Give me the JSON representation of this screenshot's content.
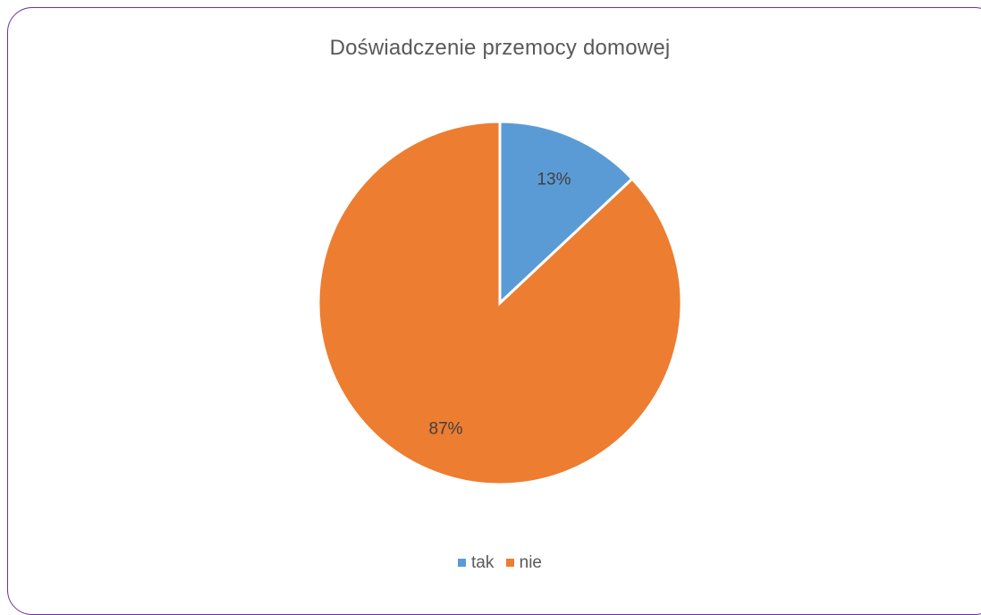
{
  "chart_data": {
    "type": "pie",
    "title": "Doświadczenie przemocy domowej",
    "categories": [
      "tak",
      "nie"
    ],
    "values": [
      13,
      87
    ],
    "data_labels": [
      "13%",
      "87%"
    ],
    "colors": [
      "#5b9bd5",
      "#ed7d31"
    ],
    "legend_position": "bottom"
  }
}
